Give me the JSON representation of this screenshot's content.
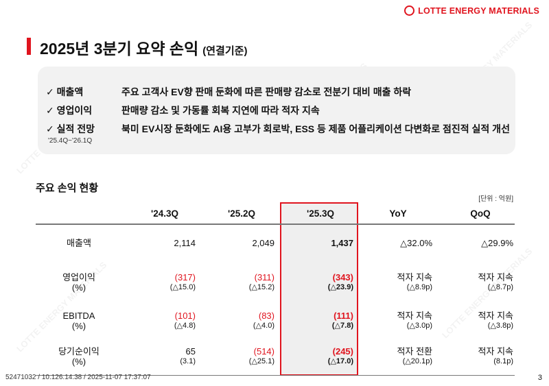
{
  "logo": {
    "text": "LOTTE ENERGY MATERIALS",
    "color": "#e0141e"
  },
  "title": {
    "main": "2025년 3분기 요약 손익",
    "sub": "(연결기준)"
  },
  "summary": [
    {
      "key": "매출액",
      "text": "주요 고객사 EV향 판매 둔화에 따른 판매량 감소로 전분기 대비 매출 하락"
    },
    {
      "key": "영업이익",
      "text": "판매량 감소 및 가동률 회복 지연에 따라 적자 지속"
    },
    {
      "key": "실적 전망",
      "text": "북미 EV시장 둔화에도 AI용 고부가 회로박, ESS 등 제품 어플리케이션 다변화로 점진적 실적 개선",
      "period": "'25.4Q~'26.1Q"
    }
  ],
  "check_icon": "✓",
  "section": {
    "heading": "주요 손익 현황",
    "unit": "[단위 : 억원]"
  },
  "table": {
    "columns": [
      "'24.3Q",
      "'25.2Q",
      "'25.3Q",
      "YoY",
      "QoQ"
    ],
    "rows": [
      {
        "label": "매출액",
        "sub": "",
        "cells": [
          {
            "v": "2,114",
            "s": ""
          },
          {
            "v": "2,049",
            "s": ""
          },
          {
            "v": "1,437",
            "s": ""
          },
          {
            "v": "△32.0%",
            "s": ""
          },
          {
            "v": "△29.9%",
            "s": ""
          }
        ]
      },
      {
        "label": "영업이익",
        "sub": "(%)",
        "cells": [
          {
            "v": "(317)",
            "s": "(△15.0)",
            "red": true
          },
          {
            "v": "(311)",
            "s": "(△15.2)",
            "red": true
          },
          {
            "v": "(343)",
            "s": "(△23.9)",
            "red": true
          },
          {
            "v": "적자 지속",
            "s": "(△8.9p)"
          },
          {
            "v": "적자 지속",
            "s": "(△8.7p)"
          }
        ]
      },
      {
        "label": "EBITDA",
        "sub": "(%)",
        "cells": [
          {
            "v": "(101)",
            "s": "(△4.8)",
            "red": true
          },
          {
            "v": "(83)",
            "s": "(△4.0)",
            "red": true
          },
          {
            "v": "(111)",
            "s": "(△7.8)",
            "red": true
          },
          {
            "v": "적자 지속",
            "s": "(△3.0p)"
          },
          {
            "v": "적자 지속",
            "s": "(△3.8p)"
          }
        ]
      },
      {
        "label": "당기순이익",
        "sub": "(%)",
        "cells": [
          {
            "v": "65",
            "s": "(3.1)"
          },
          {
            "v": "(514)",
            "s": "(△25.1)",
            "red": true
          },
          {
            "v": "(245)",
            "s": "(△17.0)",
            "red": true
          },
          {
            "v": "적자 전환",
            "s": "(△20.1p)"
          },
          {
            "v": "적자 지속",
            "s": "(8.1p)"
          }
        ]
      }
    ]
  },
  "footer": "52471032 / 10.126.14.38 / 2025-11-07 17:37:07",
  "page_number": "3",
  "watermark": "LOTTE ENERGY MATERIALS"
}
